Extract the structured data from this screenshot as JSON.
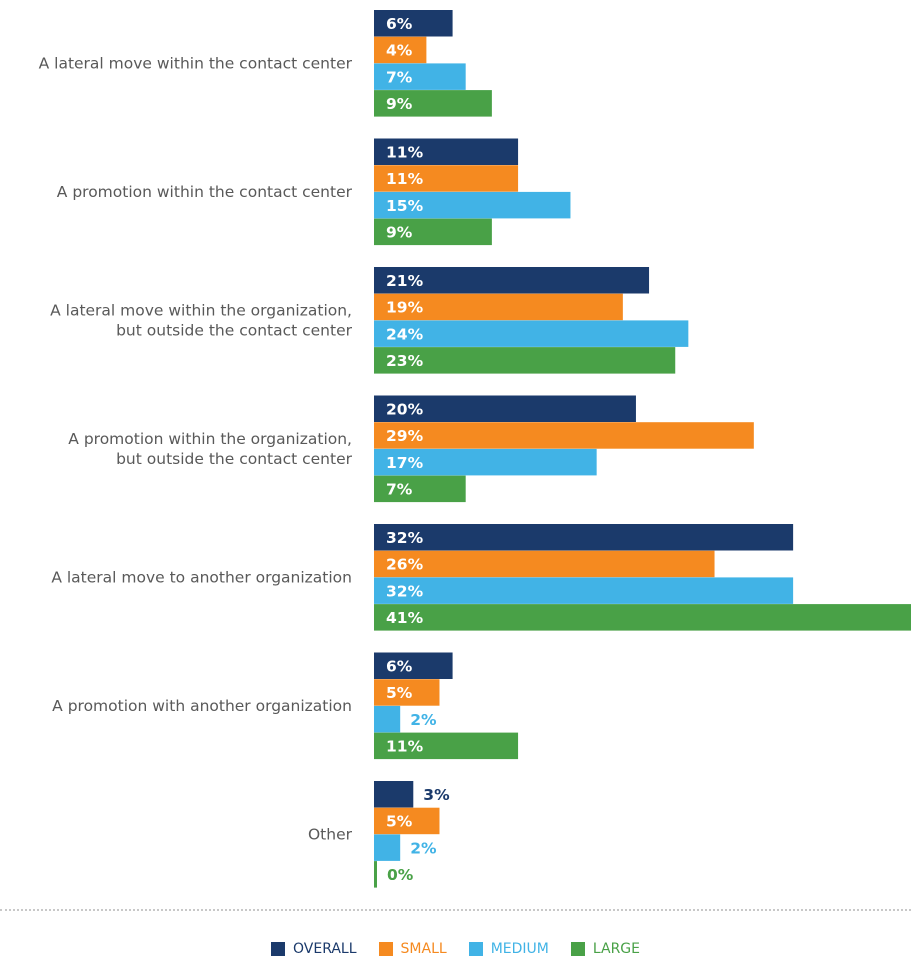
{
  "chart_data": {
    "type": "bar",
    "orientation": "horizontal",
    "categories": [
      [
        "A lateral move within the contact center"
      ],
      [
        "A promotion within the contact center"
      ],
      [
        "A lateral move within the organization,",
        "but outside the contact center"
      ],
      [
        "A promotion within the organization,",
        "but outside the contact center"
      ],
      [
        "A lateral move to another organization"
      ],
      [
        "A promotion with another organization"
      ],
      [
        "Other"
      ]
    ],
    "series": [
      {
        "name": "OVERALL",
        "color": "#1b3a6b",
        "values": [
          6,
          11,
          21,
          20,
          32,
          6,
          3
        ]
      },
      {
        "name": "SMALL",
        "color": "#f58a20",
        "values": [
          4,
          11,
          19,
          29,
          26,
          5,
          5
        ]
      },
      {
        "name": "MEDIUM",
        "color": "#41b3e6",
        "values": [
          7,
          15,
          24,
          17,
          32,
          2,
          2
        ]
      },
      {
        "name": "LARGE",
        "color": "#49a147",
        "values": [
          9,
          9,
          23,
          7,
          41,
          11,
          0
        ]
      }
    ],
    "value_suffix": "%",
    "xlim": [
      0,
      41
    ],
    "grid": false,
    "legend_position": "bottom-center"
  }
}
